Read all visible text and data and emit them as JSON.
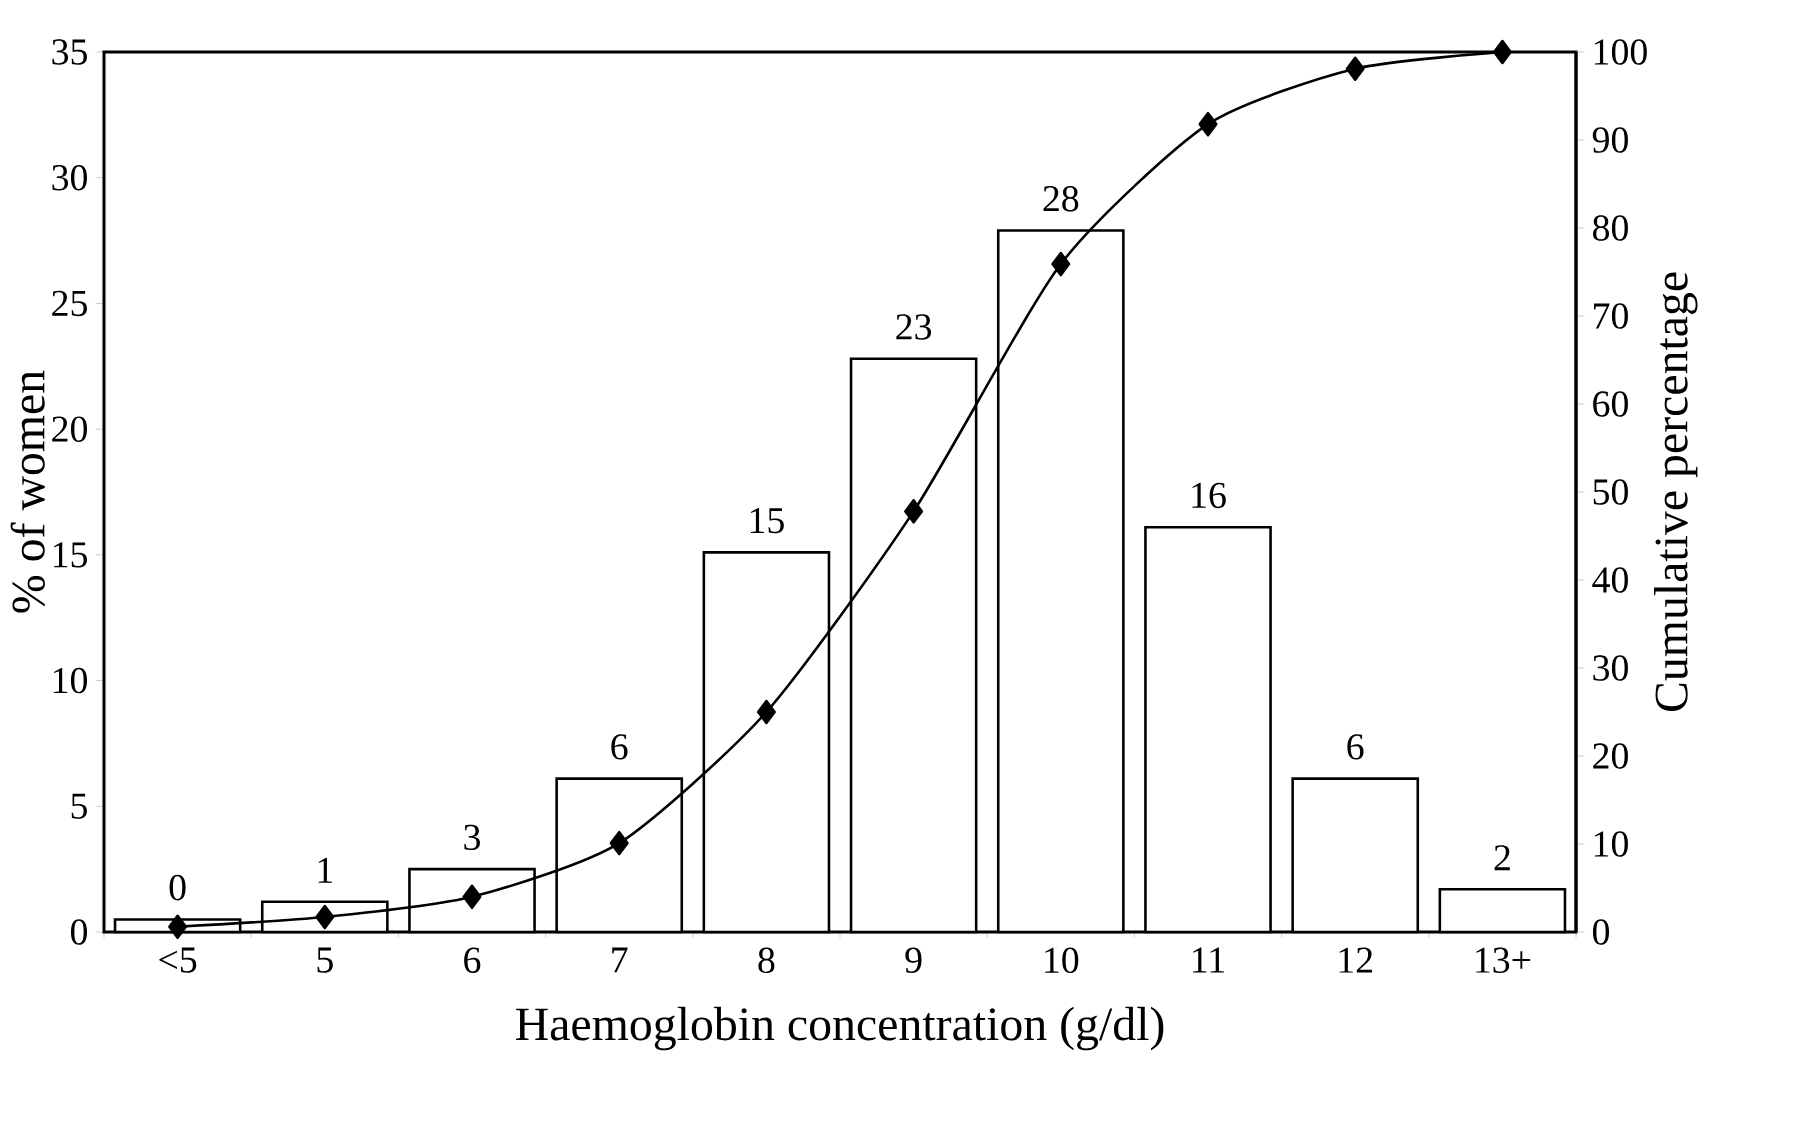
{
  "chart_data": {
    "type": "bar",
    "xlabel": "Haemoglobin concentration (g/dl)",
    "ylabel": "% of women",
    "y2label": "Cumulative percentage",
    "categories": [
      "<5",
      "5",
      "6",
      "7",
      "8",
      "9",
      "10",
      "11",
      "12",
      "13+"
    ],
    "series": [
      {
        "color": "#ffffff",
        "values": [
          0.5,
          1.2,
          2.5,
          6.1,
          15.1,
          22.8,
          27.9,
          16.1,
          6.1,
          1.7
        ],
        "value_labels": [
          "0",
          "1",
          "3",
          "6",
          "15",
          "23",
          "28",
          "16",
          "6",
          "2"
        ]
      },
      {
        "type": "line",
        "axis": "y2",
        "color": "#000000",
        "values": [
          0.6,
          1.7,
          4.0,
          10.1,
          25.0,
          47.8,
          75.9,
          91.8,
          98.1,
          100
        ]
      }
    ],
    "marker": "diamond",
    "line_style": "solid",
    "ylim": [
      0,
      35
    ],
    "yticks": [
      0,
      5,
      10,
      15,
      20,
      25,
      30,
      35
    ],
    "y2lim": [
      0,
      100
    ],
    "y2ticks": [
      0,
      10,
      20,
      30,
      40,
      50,
      60,
      70,
      80,
      90,
      100
    ]
  }
}
